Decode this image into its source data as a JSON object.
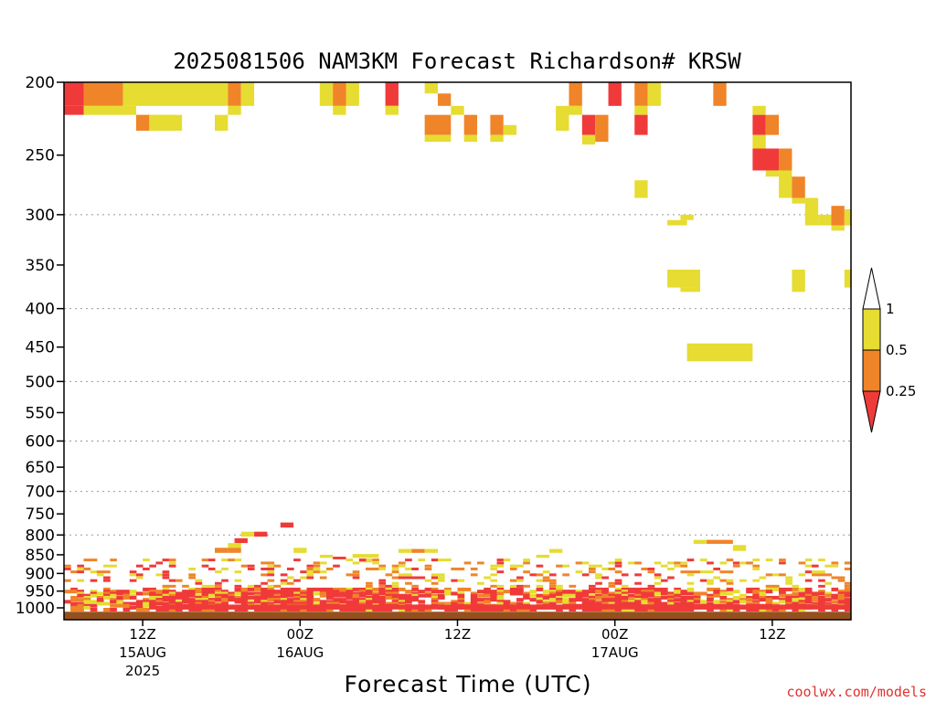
{
  "chart_data": {
    "type": "heatmap",
    "title": "2025081506 NAM3KM Forecast Richardson# KRSW",
    "xlabel": "Forecast Time (UTC)",
    "ylabel": "",
    "credit": "coolwx.com/models",
    "y_scale": "log",
    "y_inverted": true,
    "ylim": [
      1000,
      200
    ],
    "xlim_hours": [
      0,
      60
    ],
    "y_ticks": [
      200,
      250,
      300,
      350,
      400,
      450,
      500,
      550,
      600,
      650,
      700,
      750,
      800,
      850,
      900,
      950,
      1000
    ],
    "y_tick_labels": [
      "200",
      "250",
      "300",
      "350",
      "400",
      "450",
      "500",
      "550",
      "600",
      "650",
      "700",
      "750",
      "800",
      "850",
      "900",
      "950",
      "1000"
    ],
    "y_grid_levels": [
      300,
      400,
      500,
      600,
      700,
      800
    ],
    "x_ticks": [
      {
        "hour": 6,
        "label": "12Z",
        "date": "15AUG",
        "year": "2025"
      },
      {
        "hour": 18,
        "label": "00Z",
        "date": "16AUG",
        "year": ""
      },
      {
        "hour": 30,
        "label": "12Z",
        "date": "",
        "year": ""
      },
      {
        "hour": 42,
        "label": "00Z",
        "date": "17AUG",
        "year": ""
      },
      {
        "hour": 54,
        "label": "12Z",
        "date": "",
        "year": ""
      }
    ],
    "legend": {
      "position": "right",
      "bins": [
        {
          "range": "< 0.25",
          "color": "#f03a3a"
        },
        {
          "range": "0.25-0.5",
          "color": "#f08428"
        },
        {
          "range": "0.5-1",
          "color": "#e6dc32"
        },
        {
          "range": "> 1",
          "color": "#ffffff"
        }
      ],
      "labels": [
        "1",
        "0.5",
        "0.25"
      ]
    },
    "colors": {
      "low": "#f03a3a",
      "mid": "#f08428",
      "high": "#e6dc32",
      "ground": "#96501e"
    },
    "cells": [
      [
        0,
        1.5,
        200,
        215,
        "#f03a3a"
      ],
      [
        1.5,
        4.5,
        200,
        215,
        "#f08428"
      ],
      [
        4.5,
        12.5,
        200,
        215,
        "#e6dc32"
      ],
      [
        0,
        1.5,
        215,
        221,
        "#f03a3a"
      ],
      [
        1.5,
        5.5,
        215,
        221,
        "#e6dc32"
      ],
      [
        5.5,
        9,
        221,
        232,
        "#e6dc32"
      ],
      [
        5.5,
        6.5,
        221,
        232,
        "#f08428"
      ],
      [
        6.5,
        8.5,
        221,
        232,
        "#e6dc32"
      ],
      [
        11.5,
        12.5,
        221,
        232,
        "#e6dc32"
      ],
      [
        12.5,
        13.5,
        200,
        215,
        "#f08428"
      ],
      [
        13.5,
        14.5,
        200,
        215,
        "#e6dc32"
      ],
      [
        12.5,
        13.5,
        215,
        221,
        "#e6dc32"
      ],
      [
        19.5,
        20.5,
        200,
        215,
        "#e6dc32"
      ],
      [
        20.5,
        21.5,
        200,
        215,
        "#f08428"
      ],
      [
        21.5,
        22.5,
        200,
        215,
        "#e6dc32"
      ],
      [
        20.5,
        21.5,
        215,
        221,
        "#e6dc32"
      ],
      [
        24.5,
        25.5,
        200,
        215,
        "#f03a3a"
      ],
      [
        24.5,
        25.5,
        215,
        221,
        "#e6dc32"
      ],
      [
        27.5,
        28.5,
        200,
        207,
        "#e6dc32"
      ],
      [
        28.5,
        29.5,
        207,
        215,
        "#f08428"
      ],
      [
        29.5,
        30.5,
        215,
        221,
        "#e6dc32"
      ],
      [
        27.5,
        29.5,
        221,
        235,
        "#f08428"
      ],
      [
        27.5,
        29.5,
        235,
        240,
        "#e6dc32"
      ],
      [
        30.5,
        31.5,
        221,
        235,
        "#f08428"
      ],
      [
        30.5,
        31.5,
        235,
        240,
        "#e6dc32"
      ],
      [
        32.5,
        33.5,
        221,
        235,
        "#f08428"
      ],
      [
        32.5,
        33.5,
        235,
        240,
        "#e6dc32"
      ],
      [
        33.5,
        34.5,
        228,
        235,
        "#e6dc32"
      ],
      [
        37.5,
        38.5,
        215,
        232,
        "#e6dc32"
      ],
      [
        38.5,
        39.5,
        200,
        215,
        "#f08428"
      ],
      [
        38.5,
        39.5,
        215,
        221,
        "#e6dc32"
      ],
      [
        39.5,
        40.5,
        221,
        235,
        "#f03a3a"
      ],
      [
        39.5,
        40.5,
        235,
        242,
        "#e6dc32"
      ],
      [
        40.5,
        41.5,
        221,
        240,
        "#f08428"
      ],
      [
        41.5,
        42.5,
        200,
        215,
        "#f03a3a"
      ],
      [
        43.5,
        44.5,
        200,
        215,
        "#f08428"
      ],
      [
        44.5,
        45.5,
        200,
        215,
        "#e6dc32"
      ],
      [
        43.5,
        44.5,
        215,
        221,
        "#e6dc32"
      ],
      [
        43.5,
        44.5,
        221,
        235,
        "#f03a3a"
      ],
      [
        43.5,
        44.5,
        270,
        285,
        "#e6dc32"
      ],
      [
        49.5,
        50.5,
        200,
        215,
        "#f08428"
      ],
      [
        52.5,
        53.5,
        215,
        221,
        "#e6dc32"
      ],
      [
        52.5,
        53.5,
        221,
        235,
        "#f03a3a"
      ],
      [
        53.5,
        54.5,
        221,
        235,
        "#f08428"
      ],
      [
        52.5,
        53.5,
        235,
        245,
        "#e6dc32"
      ],
      [
        52.5,
        54.5,
        245,
        262,
        "#f03a3a"
      ],
      [
        54.5,
        55.5,
        245,
        262,
        "#f08428"
      ],
      [
        53.5,
        54.5,
        262,
        267,
        "#e6dc32"
      ],
      [
        54.5,
        55.5,
        262,
        285,
        "#e6dc32"
      ],
      [
        55.5,
        56.5,
        267,
        285,
        "#f08428"
      ],
      [
        55.5,
        56.5,
        285,
        290,
        "#e6dc32"
      ],
      [
        56.5,
        57.5,
        285,
        310,
        "#e6dc32"
      ],
      [
        57.5,
        58.5,
        300,
        310,
        "#e6dc32"
      ],
      [
        58.5,
        59.5,
        292,
        310,
        "#f08428"
      ],
      [
        58.5,
        59.5,
        310,
        315,
        "#e6dc32"
      ],
      [
        59.5,
        60,
        295,
        310,
        "#e6dc32"
      ],
      [
        46,
        47.5,
        305,
        310,
        "#e6dc32"
      ],
      [
        47,
        48,
        300,
        305,
        "#e6dc32"
      ],
      [
        46,
        48.5,
        355,
        375,
        "#e6dc32"
      ],
      [
        47,
        48.5,
        375,
        380,
        "#e6dc32"
      ],
      [
        55.5,
        56.5,
        355,
        380,
        "#e6dc32"
      ],
      [
        59.5,
        60,
        355,
        375,
        "#e6dc32"
      ],
      [
        47.5,
        52.5,
        445,
        470,
        "#e6dc32"
      ],
      [
        16.5,
        17.5,
        770,
        782,
        "#f03a3a"
      ],
      [
        13.5,
        14.5,
        792,
        804,
        "#e6dc32"
      ],
      [
        14.5,
        15.5,
        792,
        804,
        "#f03a3a"
      ],
      [
        13,
        14,
        808,
        820,
        "#f03a3a"
      ],
      [
        12.5,
        13.5,
        820,
        832,
        "#e6dc32"
      ],
      [
        11.5,
        12.5,
        832,
        845,
        "#f08428"
      ],
      [
        12.5,
        13.5,
        832,
        845,
        "#f08428"
      ],
      [
        17.5,
        18.5,
        832,
        845,
        "#e6dc32"
      ],
      [
        25.5,
        26.5,
        835,
        845,
        "#e6dc32"
      ],
      [
        26.5,
        27.5,
        835,
        845,
        "#f08428"
      ],
      [
        27.5,
        28.5,
        835,
        845,
        "#e6dc32"
      ],
      [
        37,
        38,
        835,
        845,
        "#e6dc32"
      ],
      [
        36,
        37,
        850,
        858,
        "#e6dc32"
      ],
      [
        48,
        49,
        812,
        822,
        "#e6dc32"
      ],
      [
        49,
        50,
        812,
        822,
        "#f08428"
      ],
      [
        50,
        51,
        812,
        822,
        "#f08428"
      ],
      [
        51,
        52,
        825,
        840,
        "#e6dc32"
      ],
      [
        22,
        24,
        848,
        858,
        "#e6dc32"
      ],
      [
        19.5,
        20.5,
        850,
        858,
        "#e6dc32"
      ],
      [
        20.5,
        21.5,
        855,
        862,
        "#f03a3a"
      ],
      [
        22.5,
        23.5,
        860,
        870,
        "#e6dc32"
      ]
    ],
    "low_band": {
      "x_start": 0,
      "x_end": 60,
      "p_top": 860,
      "p_bottom": 1005,
      "density_profile": "dense red near 950-1000 hPa, mixed orange/yellow/red streaks 860-950 hPa"
    },
    "ground": {
      "p_top": 1012,
      "color": "#96501e"
    }
  }
}
